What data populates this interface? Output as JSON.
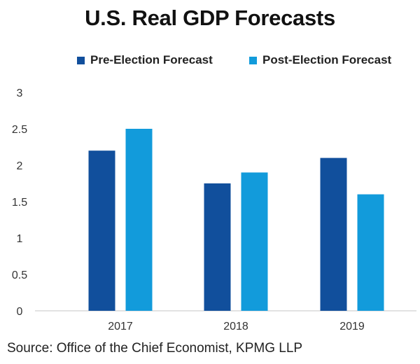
{
  "chart_data": {
    "type": "bar",
    "title": "U.S. Real GDP Forecasts",
    "xlabel": "",
    "ylabel": "",
    "categories": [
      "2017",
      "2018",
      "2019"
    ],
    "series": [
      {
        "name": "Pre-Election Forecast",
        "color": "#114f9c",
        "values": [
          2.2,
          1.75,
          2.1
        ]
      },
      {
        "name": "Post-Election Forecast",
        "color": "#129bdb",
        "values": [
          2.5,
          1.9,
          1.6
        ]
      }
    ],
    "ylim": [
      0,
      3
    ],
    "yticks": [
      "0",
      "0.5",
      "1",
      "1.5",
      "2",
      "2.5",
      "3"
    ],
    "ytick_values": [
      0,
      0.5,
      1,
      1.5,
      2,
      2.5,
      3
    ],
    "grid": false,
    "legend_position": "top-center",
    "source": "Source: Office of the Chief Economist, KPMG LLP"
  }
}
